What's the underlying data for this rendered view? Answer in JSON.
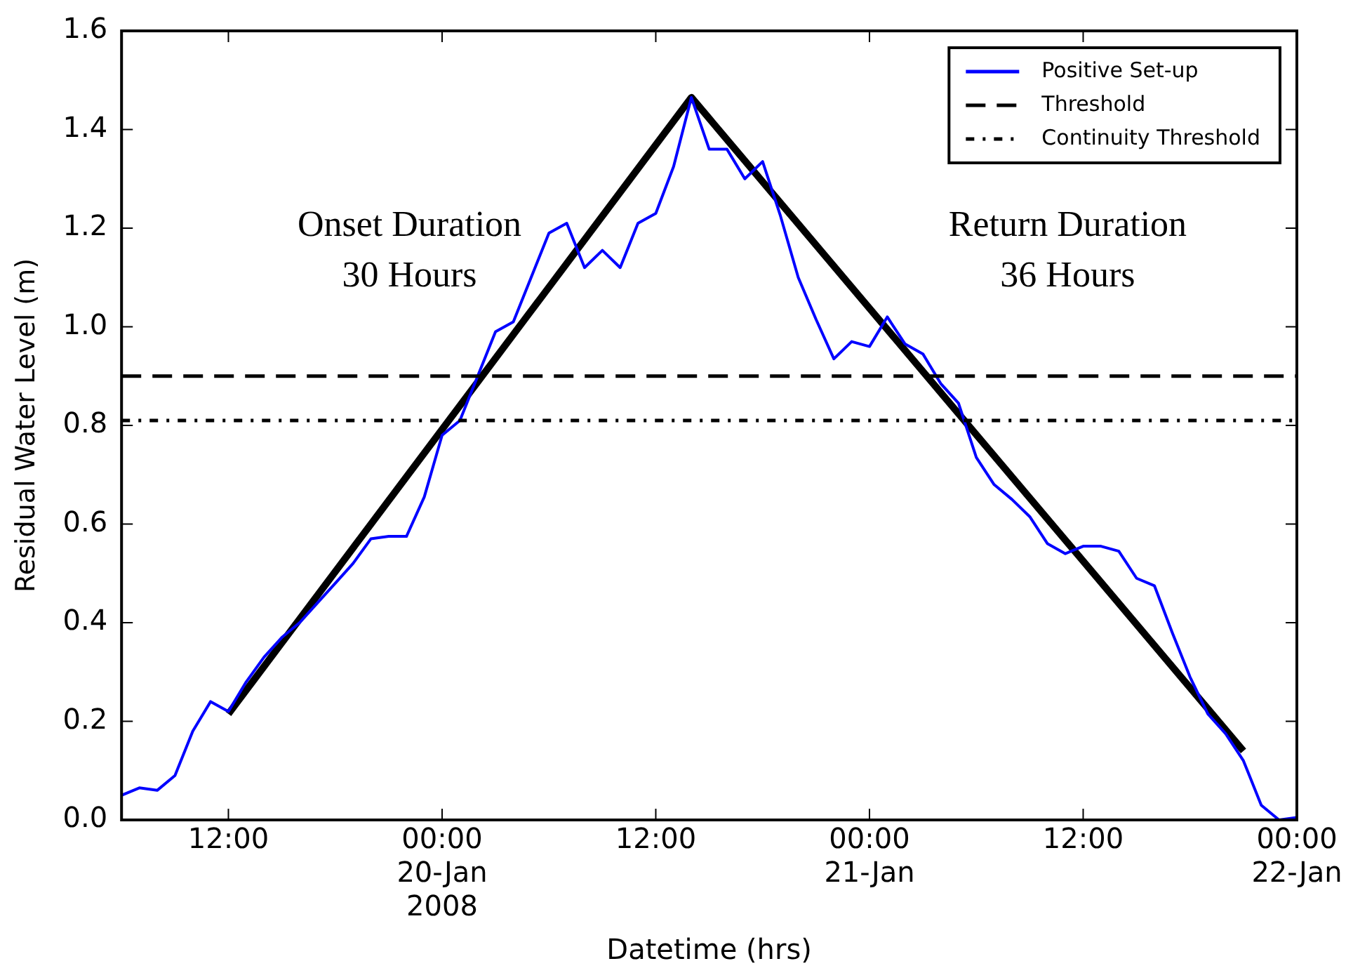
{
  "chart_data": {
    "type": "line",
    "xlabel": "Datetime (hrs)",
    "ylabel": "Residual Water Level (m)",
    "xlim": [
      "2008-01-19T06:00",
      "2008-01-22T00:00"
    ],
    "xticks": [
      {
        "value": "2008-01-19T12:00",
        "label": "12:00"
      },
      {
        "value": "2008-01-20T00:00",
        "label": "00:00\n20-Jan\n2008"
      },
      {
        "value": "2008-01-20T12:00",
        "label": "12:00"
      },
      {
        "value": "2008-01-21T00:00",
        "label": "00:00\n21-Jan"
      },
      {
        "value": "2008-01-21T12:00",
        "label": "12:00"
      },
      {
        "value": "2008-01-22T00:00",
        "label": "00:00\n22-Jan"
      }
    ],
    "ylim": [
      0,
      1.6
    ],
    "yticks": [
      {
        "value": 0,
        "label": "0.0"
      },
      0.2,
      0.4,
      0.6,
      0.8,
      {
        "value": 1,
        "label": "1.0"
      },
      1.2,
      1.4,
      1.6
    ],
    "grid": false,
    "legend": "top right",
    "marker": "none",
    "series": [
      {
        "name": "Positive Set-up",
        "color": "#0000ff",
        "line_style": "solid",
        "x": [
          "2008-01-19T06:00",
          "2008-01-19T07:00",
          "2008-01-19T08:00",
          "2008-01-19T09:00",
          "2008-01-19T10:00",
          "2008-01-19T11:00",
          "2008-01-19T12:00",
          "2008-01-19T13:00",
          "2008-01-19T14:00",
          "2008-01-19T15:00",
          "2008-01-19T16:00",
          "2008-01-19T17:00",
          "2008-01-19T18:00",
          "2008-01-19T19:00",
          "2008-01-19T20:00",
          "2008-01-19T21:00",
          "2008-01-19T22:00",
          "2008-01-19T23:00",
          "2008-01-20T00:00",
          "2008-01-20T01:00",
          "2008-01-20T02:00",
          "2008-01-20T03:00",
          "2008-01-20T04:00",
          "2008-01-20T05:00",
          "2008-01-20T06:00",
          "2008-01-20T07:00",
          "2008-01-20T08:00",
          "2008-01-20T09:00",
          "2008-01-20T10:00",
          "2008-01-20T11:00",
          "2008-01-20T12:00",
          "2008-01-20T13:00",
          "2008-01-20T14:00",
          "2008-01-20T15:00",
          "2008-01-20T16:00",
          "2008-01-20T17:00",
          "2008-01-20T18:00",
          "2008-01-20T19:00",
          "2008-01-20T20:00",
          "2008-01-20T21:00",
          "2008-01-20T22:00",
          "2008-01-20T23:00",
          "2008-01-21T00:00",
          "2008-01-21T01:00",
          "2008-01-21T02:00",
          "2008-01-21T03:00",
          "2008-01-21T04:00",
          "2008-01-21T05:00",
          "2008-01-21T06:00",
          "2008-01-21T07:00",
          "2008-01-21T08:00",
          "2008-01-21T09:00",
          "2008-01-21T10:00",
          "2008-01-21T11:00",
          "2008-01-21T12:00",
          "2008-01-21T13:00",
          "2008-01-21T14:00",
          "2008-01-21T15:00",
          "2008-01-21T16:00",
          "2008-01-21T17:00",
          "2008-01-21T18:00",
          "2008-01-21T19:00",
          "2008-01-21T20:00",
          "2008-01-21T21:00",
          "2008-01-21T22:00",
          "2008-01-21T23:00",
          "2008-01-22T00:00"
        ],
        "values": [
          0.05,
          0.065,
          0.06,
          0.09,
          0.18,
          0.24,
          0.22,
          0.28,
          0.33,
          0.37,
          0.4,
          0.44,
          0.48,
          0.52,
          0.57,
          0.575,
          0.575,
          0.655,
          0.78,
          0.81,
          0.9,
          0.99,
          1.01,
          1.1,
          1.19,
          1.21,
          1.12,
          1.155,
          1.12,
          1.21,
          1.23,
          1.325,
          1.465,
          1.36,
          1.36,
          1.3,
          1.335,
          1.225,
          1.1,
          1.015,
          0.935,
          0.97,
          0.96,
          1.02,
          0.965,
          0.945,
          0.885,
          0.845,
          0.735,
          0.68,
          0.65,
          0.615,
          0.56,
          0.54,
          0.555,
          0.555,
          0.545,
          0.49,
          0.475,
          0.38,
          0.29,
          0.215,
          0.175,
          0.12,
          0.03,
          0,
          0.005
        ]
      },
      {
        "color": "#000000",
        "line_style": "solid",
        "x": [
          "2008-01-19T12:00",
          "2008-01-20T14:00",
          "2008-01-21T21:00"
        ],
        "values": [
          0.215,
          1.465,
          0.14
        ]
      }
    ],
    "ref_lines": [
      {
        "axis": "y",
        "value": 0.9,
        "label": "Threshold",
        "color": "#000000",
        "line_style": "dashed"
      },
      {
        "axis": "y",
        "value": 0.81,
        "label": "Continuity Threshold",
        "color": "#000000",
        "line_style": "dotted"
      }
    ],
    "annotations": [
      "Onset Duration\n30 Hours",
      "Return Duration\n36 Hours"
    ]
  }
}
